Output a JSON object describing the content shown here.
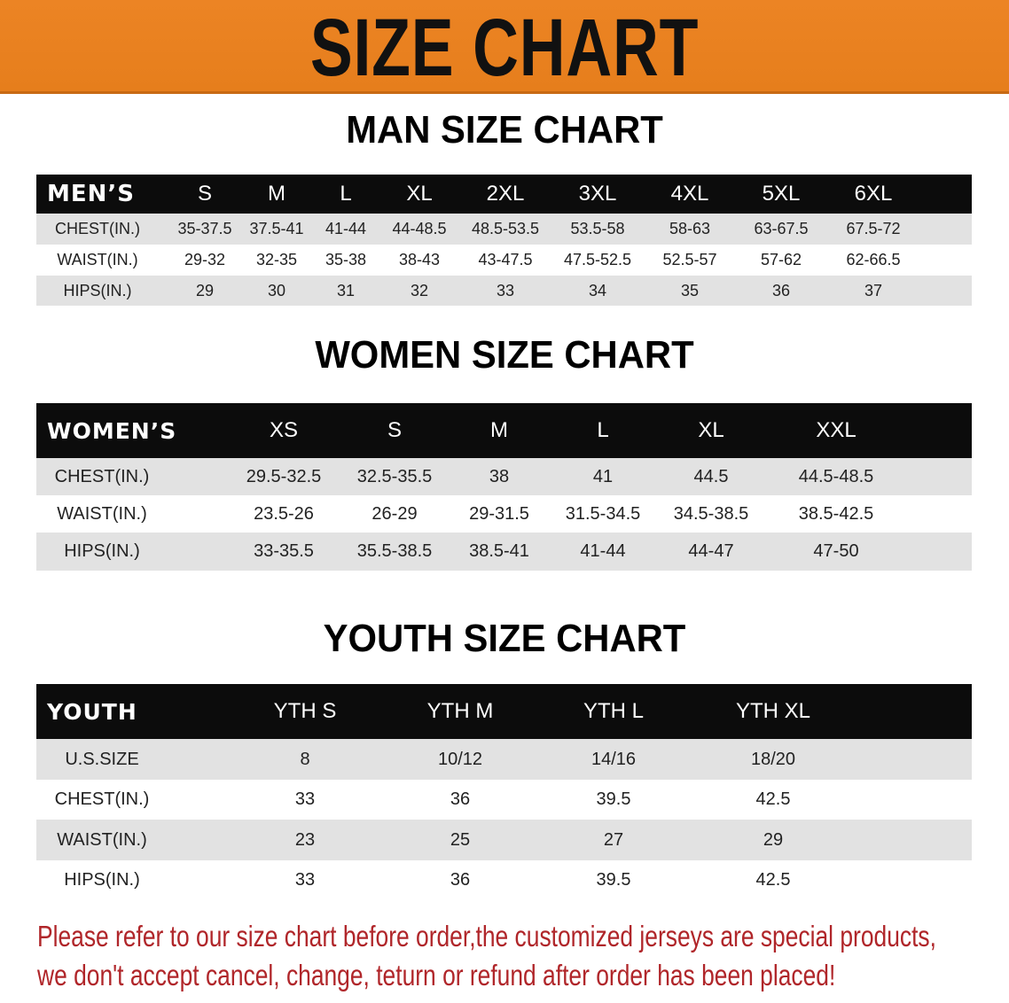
{
  "banner_title": "SIZE CHART",
  "colors": {
    "banner": "#e8801f",
    "header_row": "#0c0c0c",
    "stripe": "#e2e2e2",
    "note": "#b0262a"
  },
  "men": {
    "title": "MAN SIZE CHART",
    "header_label": "MEN’S",
    "sizes": [
      "S",
      "M",
      "L",
      "XL",
      "2XL",
      "3XL",
      "4XL",
      "5XL",
      "6XL"
    ],
    "rows": [
      {
        "label": "CHEST(IN.)",
        "values": [
          "35-37.5",
          "37.5-41",
          "41-44",
          "44-48.5",
          "48.5-53.5",
          "53.5-58",
          "58-63",
          "63-67.5",
          "67.5-72"
        ]
      },
      {
        "label": "WAIST(IN.)",
        "values": [
          "29-32",
          "32-35",
          "35-38",
          "38-43",
          "43-47.5",
          "47.5-52.5",
          "52.5-57",
          "57-62",
          "62-66.5"
        ]
      },
      {
        "label": "HIPS(IN.)",
        "values": [
          "29",
          "30",
          "31",
          "32",
          "33",
          "34",
          "35",
          "36",
          "37"
        ]
      }
    ]
  },
  "women": {
    "title": "WOMEN SIZE CHART",
    "header_label": "WOMEN’S",
    "sizes": [
      "XS",
      "S",
      "M",
      "L",
      "XL",
      "XXL"
    ],
    "rows": [
      {
        "label": "CHEST(IN.)",
        "values": [
          "29.5-32.5",
          "32.5-35.5",
          "38",
          "41",
          "44.5",
          "44.5-48.5"
        ]
      },
      {
        "label": "WAIST(IN.)",
        "values": [
          "23.5-26",
          "26-29",
          "29-31.5",
          "31.5-34.5",
          "34.5-38.5",
          "38.5-42.5"
        ]
      },
      {
        "label": "HIPS(IN.)",
        "values": [
          "33-35.5",
          "35.5-38.5",
          "38.5-41",
          "41-44",
          "44-47",
          "47-50"
        ]
      }
    ]
  },
  "youth": {
    "title": "YOUTH SIZE CHART",
    "header_label": "YOUTH",
    "sizes": [
      "YTH S",
      "YTH M",
      "YTH L",
      "YTH XL"
    ],
    "rows": [
      {
        "label": "U.S.SIZE",
        "values": [
          "8",
          "10/12",
          "14/16",
          "18/20"
        ]
      },
      {
        "label": "CHEST(IN.)",
        "values": [
          "33",
          "36",
          "39.5",
          "42.5"
        ]
      },
      {
        "label": "WAIST(IN.)",
        "values": [
          "23",
          "25",
          "27",
          "29"
        ]
      },
      {
        "label": "HIPS(IN.)",
        "values": [
          "33",
          "36",
          "39.5",
          "42.5"
        ]
      }
    ]
  },
  "notice": [
    "Please refer to our size chart before order,the customized jerseys are special products,",
    "we don't accept cancel, change, teturn or refund after order has been placed!"
  ]
}
